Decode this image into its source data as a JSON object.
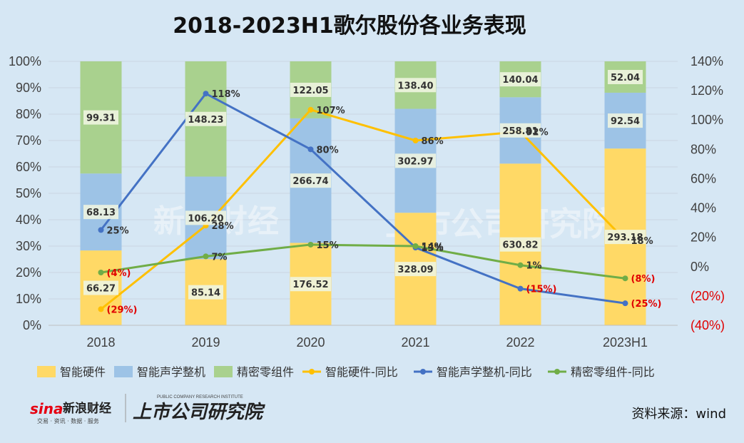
{
  "chart_data": {
    "type": "bar",
    "stacked": true,
    "normalized": true,
    "title": "2018-2023H1歌尔股份各业务表现",
    "categories": [
      "2018",
      "2019",
      "2020",
      "2021",
      "2022",
      "2023H1"
    ],
    "y_left_ticks": [
      "0%",
      "10%",
      "20%",
      "30%",
      "40%",
      "50%",
      "60%",
      "70%",
      "80%",
      "90%",
      "100%"
    ],
    "y_right_ticks": [
      "(40%)",
      "(20%)",
      "0%",
      "20%",
      "40%",
      "60%",
      "80%",
      "100%",
      "120%",
      "140%"
    ],
    "y_left_range": [
      0,
      100
    ],
    "y_right_range": [
      -40,
      140
    ],
    "bar_series": [
      {
        "name": "智能硬件",
        "color": "#ffd966",
        "values": [
          66.27,
          85.14,
          176.52,
          328.09,
          630.82,
          293.18
        ],
        "labels": [
          "66.27",
          "85.14",
          "176.52",
          "328.09",
          "630.82",
          "293.18"
        ]
      },
      {
        "name": "智能声学整机",
        "color": "#9dc3e6",
        "values": [
          68.13,
          106.2,
          266.74,
          302.97,
          258.81,
          92.54
        ],
        "labels": [
          "68.13",
          "106.20",
          "266.74",
          "302.97",
          "258.81",
          "92.54"
        ]
      },
      {
        "name": "精密零组件",
        "color": "#a9d18e",
        "values": [
          99.31,
          148.23,
          122.05,
          138.4,
          140.04,
          52.04
        ],
        "labels": [
          "99.31",
          "148.23",
          "122.05",
          "138.40",
          "140.04",
          "52.04"
        ]
      }
    ],
    "line_series": [
      {
        "name": "智能硬件-同比",
        "color": "#ffc000",
        "values": [
          -29,
          28,
          107,
          86,
          92,
          18
        ],
        "labels": [
          "(29%)",
          "28%",
          "107%",
          "86%",
          "92%",
          "18%"
        ]
      },
      {
        "name": "智能声学整机-同比",
        "color": "#4472c4",
        "values": [
          25,
          118,
          80,
          13,
          -15,
          -25
        ],
        "labels": [
          "25%",
          "118%",
          "80%",
          "13%",
          "(15%)",
          "(25%)"
        ]
      },
      {
        "name": "精密零组件-同比",
        "color": "#70ad47",
        "values": [
          -4,
          7,
          15,
          14,
          1,
          -8
        ],
        "labels": [
          "(4%)",
          "7%",
          "15%",
          "14%",
          "1%",
          "(8%)"
        ]
      }
    ],
    "legend_position": "bottom",
    "grid": true
  },
  "footer": {
    "source": "资料来源：wind",
    "brand_sina": "sina",
    "brand_sina_cn": "新浪财经",
    "brand_sina_sub": "交易 · 资讯 · 数据 · 服务",
    "brand_research_cn": "上市公司研究院",
    "brand_research_en": "PUBLIC COMPANY RESEARCH INSTITUTE"
  },
  "watermark": {
    "left": "新浪财经",
    "right": "上市公司研究院"
  }
}
